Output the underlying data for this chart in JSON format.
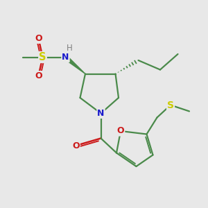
{
  "background_color": "#e8e8e8",
  "bond_color": "#4a8a4a",
  "atom_colors": {
    "N": "#1a1acc",
    "O": "#cc1a1a",
    "S": "#cccc00",
    "H": "#808080",
    "C": "#333333"
  }
}
